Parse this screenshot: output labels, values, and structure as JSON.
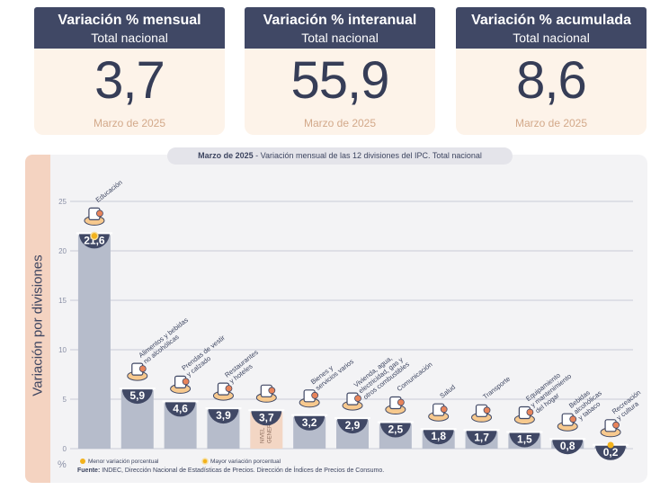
{
  "cards": [
    {
      "title": "Variación % mensual",
      "subtitle": "Total nacional",
      "value": "3,7",
      "period": "Marzo de 2025"
    },
    {
      "title": "Variación % interanual",
      "subtitle": "Total nacional",
      "value": "55,9",
      "period": "Marzo de 2025"
    },
    {
      "title": "Variación % acumulada",
      "subtitle": "Total nacional",
      "value": "8,6",
      "period": "Marzo de 2025"
    }
  ],
  "chart_data": {
    "type": "bar",
    "title_period": "Marzo de 2025",
    "title_rest": " - Variación mensual de las 12 divisiones del IPC. Total nacional",
    "ylabel": "Variación por divisiones",
    "yunit": "%",
    "ylim": [
      0,
      25
    ],
    "yticks": [
      0,
      5,
      10,
      15,
      20,
      25
    ],
    "grid": true,
    "categories": [
      {
        "label": [
          "Educación"
        ],
        "icon": "book-icon"
      },
      {
        "label": [
          "Alimentos y bebidas",
          "no alcohólicas"
        ],
        "icon": "food-icon"
      },
      {
        "label": [
          "Prendas de vestir",
          "y calzado"
        ],
        "icon": "clothing-icon"
      },
      {
        "label": [
          "Restaurantes",
          "y hoteles"
        ],
        "icon": "restaurant-icon"
      },
      {
        "label": [
          "NIVEL",
          "GENERAL"
        ],
        "icon": "basket-icon",
        "general": true
      },
      {
        "label": [
          "Bienes y",
          "servicios varios"
        ],
        "icon": "tools-icon"
      },
      {
        "label": [
          "Vivienda, agua,",
          "electricidad, gas y",
          "otros combustibles"
        ],
        "icon": "bulb-icon"
      },
      {
        "label": [
          "Comunicación"
        ],
        "icon": "phone-icon"
      },
      {
        "label": [
          "Salud"
        ],
        "icon": "health-icon"
      },
      {
        "label": [
          "Transporte"
        ],
        "icon": "bus-icon"
      },
      {
        "label": [
          "Equipamiento",
          "y mantenimiento",
          "del hogar"
        ],
        "icon": "sofa-icon"
      },
      {
        "label": [
          "Bebidas",
          "alcohólicas",
          "y tabaco"
        ],
        "icon": "bottle-icon"
      },
      {
        "label": [
          "Recreación",
          "y cultura"
        ],
        "icon": "sun-umbrella-icon"
      }
    ],
    "values": [
      21.6,
      5.9,
      4.6,
      3.9,
      3.7,
      3.2,
      2.9,
      2.5,
      1.8,
      1.7,
      1.5,
      0.8,
      0.2
    ],
    "value_labels": [
      "21,6",
      "5,9",
      "4,6",
      "3,9",
      "3,7",
      "3,2",
      "2,9",
      "2,5",
      "1,8",
      "1,7",
      "1,5",
      "0,8",
      "0,2"
    ],
    "max_index": 0,
    "min_index": 12,
    "legend": {
      "placement": "bottom-left",
      "min_label": "Menor variación porcentual",
      "max_label": "Mayor variación porcentual"
    },
    "colors": {
      "bar": "#b6bccb",
      "general_bar": "#f3d6c4",
      "bubble": "#404865",
      "marker": "#f2b21c"
    }
  },
  "footer": {
    "source_label": "Fuente:",
    "source_text": " INDEC, Dirección Nacional de Estadísticas de Precios. Dirección de Índices de Precios de Consumo."
  }
}
